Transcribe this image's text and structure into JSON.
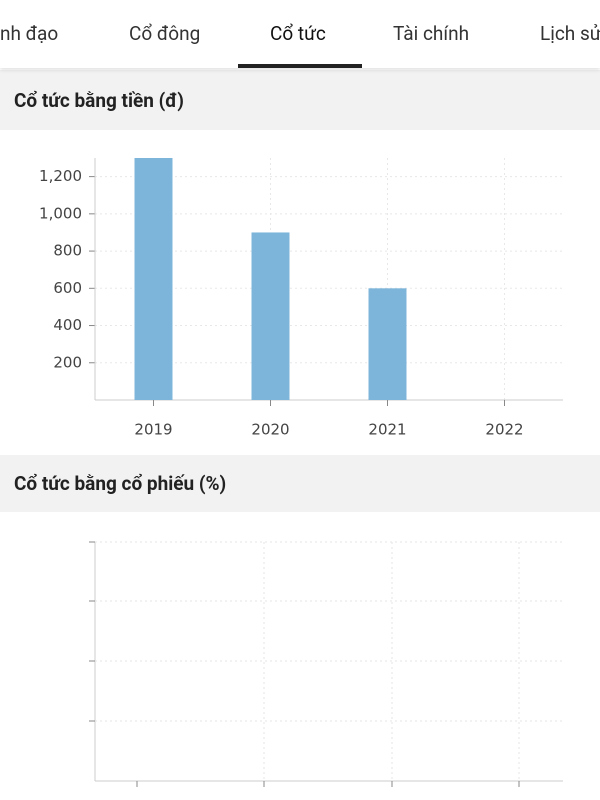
{
  "tabs": [
    "nh đạo",
    "Cổ đông",
    "Cổ tức",
    "Tài chính",
    "Lịch sử"
  ],
  "chart_data": {
    "type": "bar",
    "title": "Cổ tức bằng tiền (đ)",
    "categories": [
      "2019",
      "2020",
      "2021",
      "2022"
    ],
    "values": [
      1300,
      900,
      600,
      null
    ],
    "color": "#7db5da",
    "ylim": [
      0,
      1300
    ],
    "yticks": [
      200,
      400,
      600,
      800,
      {
        "value": 1000,
        "label": "1,000"
      },
      {
        "value": 1200,
        "label": "1,200"
      }
    ],
    "grid": true
  },
  "stock_dividend": {
    "title": "Cổ tức bằng cổ phiếu (%)"
  }
}
